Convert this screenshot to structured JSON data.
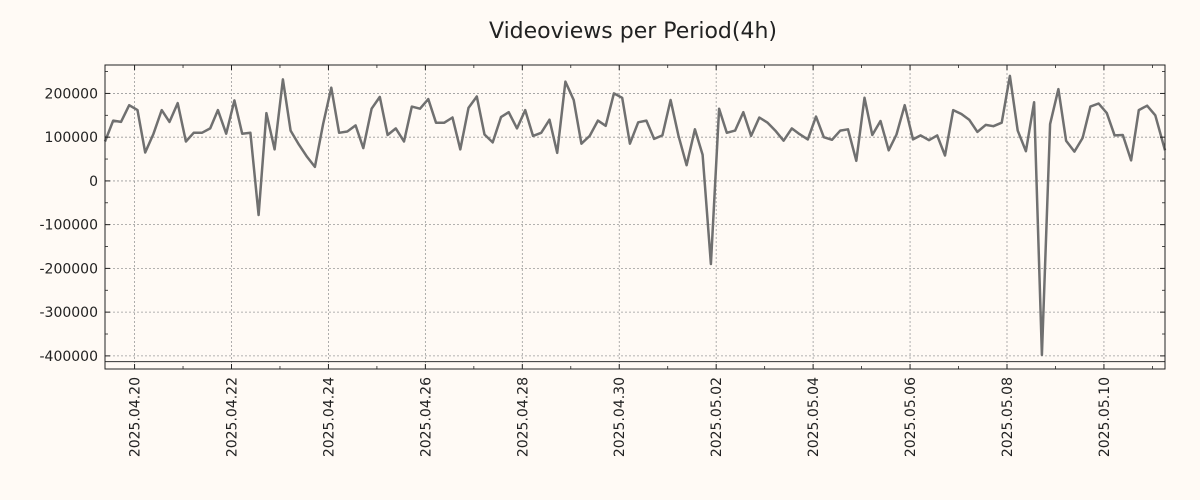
{
  "chart_data": {
    "type": "line",
    "title": "Videoviews per Period(4h)",
    "xlabel": "",
    "ylabel": "",
    "x_tick_labels": [
      "2025.04.20",
      "2025.04.22",
      "2025.04.24",
      "2025.04.26",
      "2025.04.28",
      "2025.04.30",
      "2025.05.02",
      "2025.05.04",
      "2025.05.06",
      "2025.05.08",
      "2025.05.10"
    ],
    "y_tick_labels": [
      "200000",
      "100000",
      "0",
      "-100000",
      "-200000",
      "-300000",
      "-400000"
    ],
    "y_ticks": [
      200000,
      100000,
      0,
      -100000,
      -200000,
      -300000,
      -400000
    ],
    "ylim": [
      -430000,
      265000
    ],
    "xlim_days": [
      -0.61,
      21.26
    ],
    "x_ticks_days": [
      0,
      2,
      4,
      6,
      8,
      10,
      12,
      14,
      16,
      18,
      20
    ],
    "x_unit": "days since 2025.04.20, 4h periods",
    "grid": true,
    "line_color": "#707070",
    "baseline_value": -413000,
    "series": [
      {
        "name": "Videoviews",
        "x": [
          -0.61,
          -0.44,
          -0.28,
          -0.11,
          0.06,
          0.22,
          0.39,
          0.56,
          0.72,
          0.89,
          1.06,
          1.22,
          1.39,
          1.56,
          1.72,
          1.89,
          2.06,
          2.22,
          2.39,
          2.56,
          2.72,
          2.89,
          3.06,
          3.22,
          3.39,
          3.56,
          3.72,
          3.89,
          4.06,
          4.22,
          4.39,
          4.56,
          4.72,
          4.89,
          5.06,
          5.22,
          5.39,
          5.56,
          5.72,
          5.89,
          6.06,
          6.22,
          6.39,
          6.56,
          6.72,
          6.89,
          7.06,
          7.22,
          7.39,
          7.56,
          7.72,
          7.89,
          8.06,
          8.22,
          8.39,
          8.56,
          8.72,
          8.89,
          9.06,
          9.22,
          9.39,
          9.56,
          9.72,
          9.89,
          10.06,
          10.22,
          10.39,
          10.56,
          10.72,
          10.89,
          11.06,
          11.22,
          11.39,
          11.56,
          11.72,
          11.89,
          12.06,
          12.22,
          12.39,
          12.56,
          12.72,
          12.89,
          13.06,
          13.22,
          13.39,
          13.56,
          13.72,
          13.89,
          14.06,
          14.22,
          14.39,
          14.56,
          14.72,
          14.89,
          15.06,
          15.22,
          15.39,
          15.56,
          15.72,
          15.89,
          16.06,
          16.22,
          16.39,
          16.56,
          16.72,
          16.89,
          17.06,
          17.22,
          17.39,
          17.56,
          17.72,
          17.89,
          18.06,
          18.22,
          18.39,
          18.56,
          18.72,
          18.89,
          19.06,
          19.22,
          19.39,
          19.56,
          19.72,
          19.89,
          20.06,
          20.22,
          20.39,
          20.56,
          20.72,
          20.89,
          21.06,
          21.26
        ],
        "y": [
          90000,
          138000,
          135000,
          173000,
          162000,
          65000,
          108000,
          162000,
          135000,
          178000,
          90000,
          110000,
          110000,
          120000,
          162000,
          108000,
          184000,
          108000,
          110000,
          -78000,
          155000,
          72000,
          232000,
          115000,
          83000,
          55000,
          32000,
          130000,
          213000,
          110000,
          113000,
          127000,
          75000,
          165000,
          192000,
          105000,
          120000,
          90000,
          170000,
          165000,
          187000,
          133000,
          133000,
          145000,
          72000,
          167000,
          193000,
          106000,
          88000,
          146000,
          157000,
          120000,
          162000,
          103000,
          110000,
          140000,
          64000,
          227000,
          185000,
          85000,
          103000,
          138000,
          126000,
          200000,
          190000,
          85000,
          134000,
          138000,
          96000,
          104000,
          185000,
          104000,
          36000,
          118000,
          60000,
          -190000,
          165000,
          110000,
          115000,
          157000,
          103000,
          145000,
          133000,
          115000,
          92000,
          120000,
          107000,
          95000,
          147000,
          100000,
          94000,
          115000,
          118000,
          46000,
          190000,
          105000,
          137000,
          70000,
          106000,
          173000,
          95000,
          104000,
          93000,
          104000,
          58000,
          162000,
          153000,
          140000,
          112000,
          128000,
          125000,
          133000,
          240000,
          115000,
          68000,
          180000,
          -398000,
          130000,
          210000,
          92000,
          67000,
          98000,
          170000,
          177000,
          155000,
          104000,
          105000,
          47000,
          162000,
          172000,
          150000,
          70000
        ]
      }
    ]
  }
}
